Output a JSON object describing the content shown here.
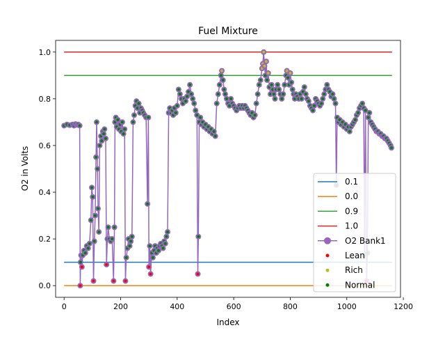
{
  "chart_data": {
    "type": "line",
    "title": "Fuel Mixture",
    "xlabel": "Index",
    "ylabel": "O2 in Volts",
    "xlim": [
      -30,
      1190
    ],
    "ylim": [
      -0.05,
      1.05
    ],
    "xticks": [
      0,
      200,
      400,
      600,
      800,
      1000,
      1200
    ],
    "yticks": [
      0.0,
      0.2,
      0.4,
      0.6,
      0.8,
      1.0
    ],
    "grid": false,
    "legend_position": "lower-right",
    "reference_lines": [
      {
        "name": "0.1",
        "y": 0.1,
        "x_range": [
          0,
          1160
        ],
        "color": "#1f77b4"
      },
      {
        "name": "0.0",
        "y": 0.0,
        "x_range": [
          0,
          1160
        ],
        "color": "#ff7f0e"
      },
      {
        "name": "0.9",
        "y": 0.9,
        "x_range": [
          0,
          1160
        ],
        "color": "#2ca02c"
      },
      {
        "name": "1.0",
        "y": 1.0,
        "x_range": [
          0,
          1160
        ],
        "color": "#d62728"
      }
    ],
    "o2_series": {
      "name": "O2 Bank1",
      "color": "#9467bd",
      "points": [
        [
          0,
          0.685
        ],
        [
          10,
          0.69
        ],
        [
          20,
          0.687
        ],
        [
          30,
          0.69
        ],
        [
          35,
          0.685
        ],
        [
          40,
          0.692
        ],
        [
          45,
          0.688
        ],
        [
          50,
          0.69
        ],
        [
          55,
          0.685
        ],
        [
          57,
          0.0
        ],
        [
          58,
          0.1
        ],
        [
          60,
          0.13
        ],
        [
          63,
          0.08
        ],
        [
          66,
          0.13
        ],
        [
          70,
          0.15
        ],
        [
          75,
          0.14
        ],
        [
          80,
          0.17
        ],
        [
          85,
          0.16
        ],
        [
          90,
          0.18
        ],
        [
          95,
          0.28
        ],
        [
          98,
          0.42
        ],
        [
          101,
          0.38
        ],
        [
          104,
          0.02
        ],
        [
          107,
          0.19
        ],
        [
          110,
          0.3
        ],
        [
          113,
          0.55
        ],
        [
          115,
          0.7
        ],
        [
          118,
          0.5
        ],
        [
          120,
          0.33
        ],
        [
          123,
          0.23
        ],
        [
          126,
          0.6
        ],
        [
          130,
          0.64
        ],
        [
          133,
          0.62
        ],
        [
          137,
          0.66
        ],
        [
          140,
          0.65
        ],
        [
          143,
          0.67
        ],
        [
          147,
          0.63
        ],
        [
          150,
          0.09
        ],
        [
          153,
          0.2
        ],
        [
          156,
          0.25
        ],
        [
          160,
          0.2
        ],
        [
          165,
          0.19
        ],
        [
          170,
          0.2
        ],
        [
          175,
          0.02
        ],
        [
          178,
          0.25
        ],
        [
          180,
          0.7
        ],
        [
          183,
          0.72
        ],
        [
          186,
          0.68
        ],
        [
          190,
          0.71
        ],
        [
          194,
          0.67
        ],
        [
          198,
          0.69
        ],
        [
          202,
          0.66
        ],
        [
          206,
          0.7
        ],
        [
          210,
          0.65
        ],
        [
          214,
          0.67
        ],
        [
          217,
          0.02
        ],
        [
          220,
          0.12
        ],
        [
          224,
          0.16
        ],
        [
          228,
          0.2
        ],
        [
          232,
          0.17
        ],
        [
          236,
          0.19
        ],
        [
          240,
          0.21
        ],
        [
          244,
          0.7
        ],
        [
          248,
          0.73
        ],
        [
          252,
          0.77
        ],
        [
          256,
          0.79
        ],
        [
          260,
          0.76
        ],
        [
          264,
          0.78
        ],
        [
          268,
          0.74
        ],
        [
          272,
          0.76
        ],
        [
          276,
          0.75
        ],
        [
          280,
          0.74
        ],
        [
          285,
          0.73
        ],
        [
          290,
          0.72
        ],
        [
          295,
          0.35
        ],
        [
          298,
          0.72
        ],
        [
          300,
          0.08
        ],
        [
          303,
          0.17
        ],
        [
          306,
          0.05
        ],
        [
          310,
          0.14
        ],
        [
          314,
          0.12
        ],
        [
          318,
          0.15
        ],
        [
          322,
          0.17
        ],
        [
          326,
          0.14
        ],
        [
          330,
          0.16
        ],
        [
          334,
          0.15
        ],
        [
          338,
          0.17
        ],
        [
          342,
          0.18
        ],
        [
          346,
          0.17
        ],
        [
          350,
          0.16
        ],
        [
          354,
          0.19
        ],
        [
          358,
          0.18
        ],
        [
          362,
          0.21
        ],
        [
          366,
          0.23
        ],
        [
          370,
          0.74
        ],
        [
          374,
          0.76
        ],
        [
          378,
          0.74
        ],
        [
          382,
          0.75
        ],
        [
          386,
          0.73
        ],
        [
          390,
          0.76
        ],
        [
          395,
          0.74
        ],
        [
          400,
          0.77
        ],
        [
          405,
          0.84
        ],
        [
          410,
          0.82
        ],
        [
          415,
          0.8
        ],
        [
          420,
          0.78
        ],
        [
          425,
          0.8
        ],
        [
          430,
          0.79
        ],
        [
          435,
          0.81
        ],
        [
          440,
          0.83
        ],
        [
          445,
          0.86
        ],
        [
          450,
          0.82
        ],
        [
          455,
          0.8
        ],
        [
          460,
          0.78
        ],
        [
          465,
          0.75
        ],
        [
          470,
          0.73
        ],
        [
          473,
          0.05
        ],
        [
          475,
          0.21
        ],
        [
          478,
          0.7
        ],
        [
          482,
          0.72
        ],
        [
          486,
          0.69
        ],
        [
          490,
          0.7
        ],
        [
          495,
          0.68
        ],
        [
          500,
          0.69
        ],
        [
          505,
          0.67
        ],
        [
          510,
          0.68
        ],
        [
          515,
          0.66
        ],
        [
          520,
          0.67
        ],
        [
          525,
          0.65
        ],
        [
          530,
          0.66
        ],
        [
          535,
          0.64
        ],
        [
          540,
          0.78
        ],
        [
          545,
          0.82
        ],
        [
          550,
          0.86
        ],
        [
          555,
          0.9
        ],
        [
          558,
          0.92
        ],
        [
          562,
          0.88
        ],
        [
          566,
          0.84
        ],
        [
          570,
          0.82
        ],
        [
          575,
          0.8
        ],
        [
          580,
          0.78
        ],
        [
          585,
          0.77
        ],
        [
          590,
          0.8
        ],
        [
          595,
          0.78
        ],
        [
          600,
          0.77
        ],
        [
          605,
          0.76
        ],
        [
          610,
          0.75
        ],
        [
          615,
          0.76
        ],
        [
          620,
          0.77
        ],
        [
          625,
          0.76
        ],
        [
          630,
          0.77
        ],
        [
          635,
          0.76
        ],
        [
          640,
          0.77
        ],
        [
          645,
          0.76
        ],
        [
          650,
          0.75
        ],
        [
          655,
          0.74
        ],
        [
          660,
          0.73
        ],
        [
          665,
          0.74
        ],
        [
          670,
          0.72
        ],
        [
          675,
          0.73
        ],
        [
          680,
          0.78
        ],
        [
          685,
          0.82
        ],
        [
          690,
          0.86
        ],
        [
          695,
          0.88
        ],
        [
          700,
          0.93
        ],
        [
          703,
          0.95
        ],
        [
          706,
          1.0
        ],
        [
          709,
          0.94
        ],
        [
          712,
          0.9
        ],
        [
          715,
          0.96
        ],
        [
          718,
          0.88
        ],
        [
          722,
          0.91
        ],
        [
          726,
          0.85
        ],
        [
          730,
          0.82
        ],
        [
          734,
          0.86
        ],
        [
          738,
          0.84
        ],
        [
          742,
          0.82
        ],
        [
          746,
          0.8
        ],
        [
          750,
          0.84
        ],
        [
          755,
          0.86
        ],
        [
          760,
          0.84
        ],
        [
          765,
          0.82
        ],
        [
          770,
          0.8
        ],
        [
          775,
          0.82
        ],
        [
          780,
          0.86
        ],
        [
          785,
          0.9
        ],
        [
          788,
          0.92
        ],
        [
          792,
          0.89
        ],
        [
          796,
          0.86
        ],
        [
          800,
          0.91
        ],
        [
          804,
          0.87
        ],
        [
          808,
          0.84
        ],
        [
          812,
          0.82
        ],
        [
          816,
          0.8
        ],
        [
          820,
          0.82
        ],
        [
          825,
          0.81
        ],
        [
          830,
          0.8
        ],
        [
          835,
          0.82
        ],
        [
          840,
          0.8
        ],
        [
          845,
          0.83
        ],
        [
          850,
          0.85
        ],
        [
          855,
          0.82
        ],
        [
          860,
          0.8
        ],
        [
          865,
          0.79
        ],
        [
          870,
          0.77
        ],
        [
          875,
          0.76
        ],
        [
          880,
          0.75
        ],
        [
          885,
          0.77
        ],
        [
          890,
          0.8
        ],
        [
          895,
          0.79
        ],
        [
          900,
          0.78
        ],
        [
          905,
          0.77
        ],
        [
          910,
          0.78
        ],
        [
          915,
          0.8
        ],
        [
          920,
          0.82
        ],
        [
          925,
          0.84
        ],
        [
          930,
          0.86
        ],
        [
          935,
          0.84
        ],
        [
          940,
          0.83
        ],
        [
          945,
          0.81
        ],
        [
          950,
          0.82
        ],
        [
          955,
          0.8
        ],
        [
          960,
          0.78
        ],
        [
          963,
          0.43
        ],
        [
          966,
          0.72
        ],
        [
          970,
          0.7
        ],
        [
          975,
          0.71
        ],
        [
          980,
          0.69
        ],
        [
          985,
          0.7
        ],
        [
          990,
          0.68
        ],
        [
          995,
          0.69
        ],
        [
          1000,
          0.67
        ],
        [
          1005,
          0.68
        ],
        [
          1010,
          0.66
        ],
        [
          1015,
          0.68
        ],
        [
          1020,
          0.69
        ],
        [
          1025,
          0.7
        ],
        [
          1030,
          0.71
        ],
        [
          1035,
          0.73
        ],
        [
          1040,
          0.74
        ],
        [
          1045,
          0.76
        ],
        [
          1050,
          0.77
        ],
        [
          1055,
          0.78
        ],
        [
          1060,
          0.76
        ],
        [
          1063,
          0.13
        ],
        [
          1066,
          0.75
        ],
        [
          1070,
          0.02
        ],
        [
          1073,
          0.14
        ],
        [
          1076,
          0.72
        ],
        [
          1080,
          0.74
        ],
        [
          1085,
          0.7
        ],
        [
          1090,
          0.69
        ],
        [
          1095,
          0.68
        ],
        [
          1100,
          0.67
        ],
        [
          1105,
          0.66
        ],
        [
          1110,
          0.66
        ],
        [
          1115,
          0.65
        ],
        [
          1120,
          0.65
        ],
        [
          1125,
          0.64
        ],
        [
          1130,
          0.64
        ],
        [
          1135,
          0.63
        ],
        [
          1140,
          0.63
        ],
        [
          1145,
          0.62
        ],
        [
          1150,
          0.61
        ],
        [
          1155,
          0.6
        ],
        [
          1158,
          0.59
        ]
      ]
    },
    "marker_classes": [
      {
        "name": "Lean",
        "color": "#ff0000",
        "rule": "y < 0.1"
      },
      {
        "name": "Rich",
        "color": "#bcbd22",
        "rule": "y > 0.9"
      },
      {
        "name": "Normal",
        "color": "#008000",
        "rule": "0.1 <= y <= 0.9"
      }
    ],
    "legend_entries": [
      "0.1",
      "0.0",
      "0.9",
      "1.0",
      "O2 Bank1",
      "Lean",
      "Rich",
      "Normal"
    ]
  }
}
